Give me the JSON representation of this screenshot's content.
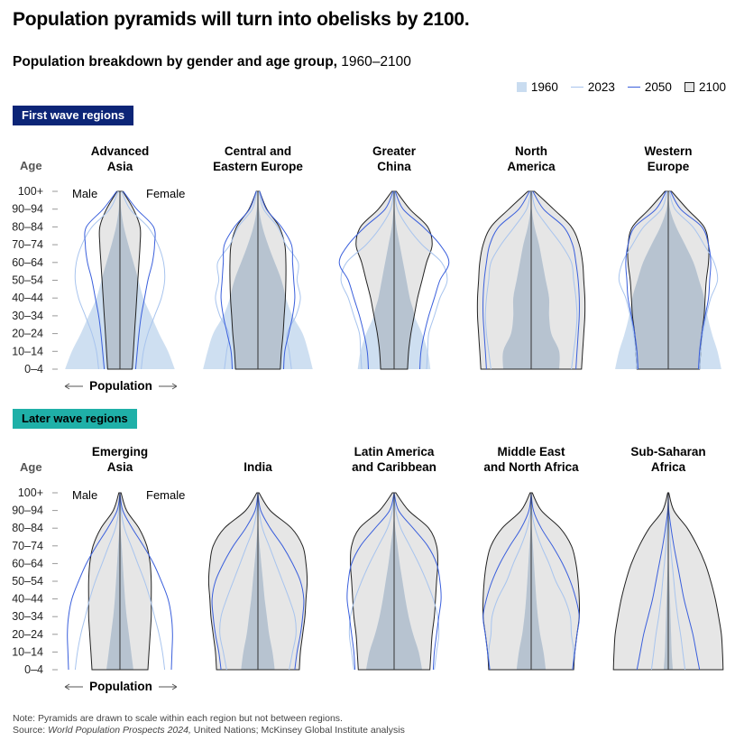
{
  "title": "Population pyramids will turn into obelisks by 2100.",
  "subtitle_bold": "Population breakdown by gender and age group,",
  "subtitle_rest": " 1960–2100",
  "legend": [
    {
      "label": "1960",
      "kind": "fill",
      "color": "#c9dcf0"
    },
    {
      "label": "2023",
      "kind": "line",
      "color": "#a8c4ee"
    },
    {
      "label": "2050",
      "kind": "line",
      "color": "#3a5fdc"
    },
    {
      "label": "2100",
      "kind": "fill-outline",
      "color": "#e6e6e6"
    }
  ],
  "band1": "First wave regions",
  "band2": "Later wave regions",
  "age_title": "Age",
  "male_label": "Male",
  "female_label": "Female",
  "population_label": "Population",
  "note": "Note: Pyramids are drawn to scale within each region but not between regions.",
  "source_italic": "World Population Prospects 2024,",
  "source_rest": " United Nations; McKinsey Global Institute analysis",
  "chart_data": {
    "type": "area",
    "age_groups": [
      "0–4",
      "10–14",
      "20–24",
      "30–34",
      "40–44",
      "50–54",
      "60–64",
      "70–74",
      "80–84",
      "90–94",
      "100+"
    ],
    "colors": {
      "1960": "#c9dcf0",
      "2023": "#a8c4ee",
      "2050": "#3a5fdc",
      "2100_fill": "#e6e6e6",
      "2100_line": "#222222",
      "overlap": "#b7c3d0"
    },
    "panels": [
      {
        "name": "Advanced\nAsia",
        "wave": 1,
        "s1960": [
          0.98,
          0.86,
          0.7,
          0.56,
          0.42,
          0.33,
          0.24,
          0.15,
          0.07,
          0.02,
          0.01
        ],
        "s2023": [
          0.38,
          0.42,
          0.5,
          0.62,
          0.74,
          0.8,
          0.78,
          0.68,
          0.5,
          0.18,
          0.03
        ],
        "s2050": [
          0.28,
          0.31,
          0.34,
          0.38,
          0.44,
          0.5,
          0.58,
          0.62,
          0.6,
          0.3,
          0.06
        ],
        "s2100": [
          0.22,
          0.24,
          0.26,
          0.28,
          0.3,
          0.32,
          0.34,
          0.36,
          0.36,
          0.24,
          0.05
        ]
      },
      {
        "name": "Central and\nEastern Europe",
        "wave": 1,
        "s1960": [
          0.98,
          0.9,
          0.8,
          0.62,
          0.5,
          0.42,
          0.3,
          0.18,
          0.08,
          0.02,
          0.01
        ],
        "s2023": [
          0.6,
          0.56,
          0.52,
          0.68,
          0.76,
          0.7,
          0.72,
          0.5,
          0.35,
          0.1,
          0.02
        ],
        "s2050": [
          0.46,
          0.48,
          0.55,
          0.62,
          0.66,
          0.64,
          0.62,
          0.6,
          0.42,
          0.15,
          0.03
        ],
        "s2100": [
          0.4,
          0.42,
          0.45,
          0.47,
          0.49,
          0.5,
          0.5,
          0.48,
          0.38,
          0.16,
          0.03
        ]
      },
      {
        "name": "Greater\nChina",
        "wave": 1,
        "s1960": [
          0.65,
          0.6,
          0.5,
          0.36,
          0.28,
          0.22,
          0.16,
          0.1,
          0.04,
          0.01,
          0.0
        ],
        "s2023": [
          0.58,
          0.6,
          0.62,
          0.72,
          0.82,
          0.95,
          0.85,
          0.5,
          0.24,
          0.06,
          0.01
        ],
        "s2050": [
          0.46,
          0.48,
          0.54,
          0.62,
          0.72,
          0.82,
          0.98,
          0.82,
          0.52,
          0.16,
          0.02
        ],
        "s2100": [
          0.24,
          0.26,
          0.3,
          0.36,
          0.42,
          0.5,
          0.58,
          0.68,
          0.6,
          0.28,
          0.04
        ]
      },
      {
        "name": "North\nAmerica",
        "wave": 1,
        "s1960": [
          0.5,
          0.5,
          0.36,
          0.32,
          0.32,
          0.26,
          0.2,
          0.14,
          0.06,
          0.01,
          0.0
        ],
        "s2023": [
          0.72,
          0.76,
          0.8,
          0.82,
          0.8,
          0.76,
          0.72,
          0.54,
          0.3,
          0.08,
          0.01
        ],
        "s2050": [
          0.8,
          0.82,
          0.84,
          0.86,
          0.86,
          0.84,
          0.8,
          0.74,
          0.58,
          0.22,
          0.03
        ],
        "s2100": [
          0.9,
          0.92,
          0.94,
          0.96,
          0.96,
          0.94,
          0.92,
          0.86,
          0.72,
          0.4,
          0.06
        ]
      },
      {
        "name": "Western\nEurope",
        "wave": 1,
        "s1960": [
          0.95,
          0.88,
          0.78,
          0.7,
          0.64,
          0.55,
          0.45,
          0.3,
          0.14,
          0.03,
          0.0
        ],
        "s2023": [
          0.56,
          0.58,
          0.62,
          0.68,
          0.76,
          0.88,
          0.82,
          0.64,
          0.44,
          0.12,
          0.02
        ],
        "s2050": [
          0.54,
          0.56,
          0.6,
          0.66,
          0.72,
          0.74,
          0.76,
          0.72,
          0.6,
          0.22,
          0.04
        ],
        "s2100": [
          0.56,
          0.58,
          0.6,
          0.64,
          0.66,
          0.68,
          0.72,
          0.72,
          0.64,
          0.34,
          0.06
        ]
      },
      {
        "name": "Emerging\nAsia",
        "wave": 2,
        "s1960": [
          0.24,
          0.2,
          0.16,
          0.12,
          0.09,
          0.07,
          0.05,
          0.03,
          0.01,
          0.0,
          0.0
        ],
        "s2023": [
          0.8,
          0.76,
          0.7,
          0.62,
          0.54,
          0.44,
          0.32,
          0.2,
          0.08,
          0.02,
          0.0
        ],
        "s2050": [
          0.92,
          0.93,
          0.94,
          0.92,
          0.86,
          0.74,
          0.6,
          0.42,
          0.22,
          0.05,
          0.0
        ],
        "s2100": [
          0.5,
          0.52,
          0.54,
          0.56,
          0.56,
          0.56,
          0.54,
          0.48,
          0.34,
          0.12,
          0.02
        ]
      },
      {
        "name": "India",
        "wave": 2,
        "s1960": [
          0.3,
          0.26,
          0.2,
          0.16,
          0.12,
          0.09,
          0.06,
          0.03,
          0.01,
          0.0,
          0.0
        ],
        "s2023": [
          0.56,
          0.62,
          0.68,
          0.66,
          0.56,
          0.44,
          0.32,
          0.2,
          0.08,
          0.02,
          0.0
        ],
        "s2050": [
          0.66,
          0.7,
          0.76,
          0.8,
          0.82,
          0.76,
          0.62,
          0.44,
          0.22,
          0.05,
          0.0
        ],
        "s2100": [
          0.74,
          0.76,
          0.8,
          0.84,
          0.86,
          0.88,
          0.86,
          0.8,
          0.6,
          0.22,
          0.02
        ]
      },
      {
        "name": "Latin America\nand Caribbean",
        "wave": 2,
        "s1960": [
          0.5,
          0.44,
          0.34,
          0.26,
          0.2,
          0.15,
          0.1,
          0.06,
          0.02,
          0.0,
          0.0
        ],
        "s2023": [
          0.72,
          0.76,
          0.8,
          0.78,
          0.7,
          0.58,
          0.44,
          0.28,
          0.12,
          0.03,
          0.0
        ],
        "s2050": [
          0.7,
          0.72,
          0.76,
          0.8,
          0.84,
          0.82,
          0.76,
          0.6,
          0.34,
          0.08,
          0.0
        ],
        "s2100": [
          0.64,
          0.66,
          0.68,
          0.72,
          0.74,
          0.76,
          0.78,
          0.76,
          0.62,
          0.26,
          0.03
        ]
      },
      {
        "name": "Middle East\nand North Africa",
        "wave": 2,
        "s1960": [
          0.26,
          0.22,
          0.16,
          0.12,
          0.09,
          0.07,
          0.05,
          0.03,
          0.01,
          0.0,
          0.0
        ],
        "s2023": [
          0.74,
          0.76,
          0.72,
          0.7,
          0.6,
          0.44,
          0.32,
          0.18,
          0.07,
          0.01,
          0.0
        ],
        "s2050": [
          0.74,
          0.78,
          0.82,
          0.86,
          0.8,
          0.7,
          0.56,
          0.38,
          0.18,
          0.04,
          0.0
        ],
        "s2100": [
          0.76,
          0.78,
          0.82,
          0.86,
          0.86,
          0.84,
          0.8,
          0.72,
          0.52,
          0.18,
          0.02
        ]
      },
      {
        "name": "Sub-Saharan\nAfrica",
        "wave": 2,
        "s1960": [
          0.08,
          0.06,
          0.05,
          0.04,
          0.03,
          0.02,
          0.01,
          0.01,
          0.0,
          0.0,
          0.0
        ],
        "s2023": [
          0.3,
          0.26,
          0.22,
          0.17,
          0.13,
          0.1,
          0.07,
          0.04,
          0.02,
          0.0,
          0.0
        ],
        "s2050": [
          0.56,
          0.5,
          0.44,
          0.36,
          0.28,
          0.22,
          0.16,
          0.1,
          0.05,
          0.01,
          0.0
        ],
        "s2100": [
          0.98,
          0.97,
          0.95,
          0.9,
          0.84,
          0.76,
          0.66,
          0.52,
          0.34,
          0.1,
          0.01
        ]
      }
    ]
  }
}
